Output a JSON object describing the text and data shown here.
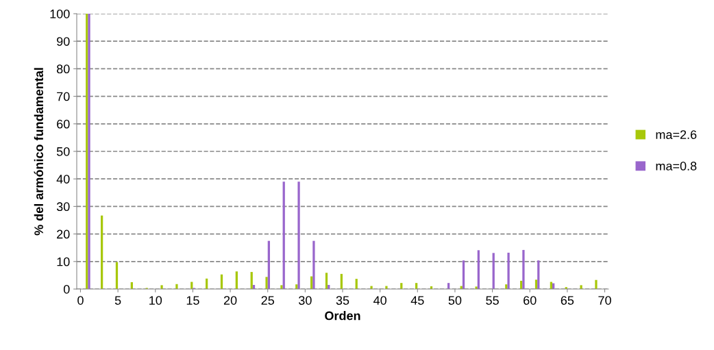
{
  "chart_data": {
    "type": "bar",
    "xlabel": "Orden",
    "ylabel": "% del armónico fundamental",
    "x": [
      1,
      3,
      5,
      7,
      9,
      11,
      13,
      15,
      17,
      19,
      21,
      23,
      25,
      27,
      29,
      31,
      33,
      35,
      37,
      39,
      41,
      43,
      45,
      47,
      49,
      51,
      53,
      55,
      57,
      59,
      61,
      63,
      65,
      67,
      69
    ],
    "series": [
      {
        "name": "ma=2.6",
        "color": "#a8c80a",
        "values": [
          100,
          26.7,
          9.8,
          2.5,
          0.4,
          1.4,
          1.8,
          2.6,
          3.8,
          5.3,
          6.4,
          6.2,
          4.4,
          1.4,
          1.7,
          4.6,
          5.9,
          5.5,
          3.7,
          1.1,
          1.1,
          2.2,
          2.2,
          1.0,
          0,
          1.1,
          0.9,
          0,
          1.7,
          3.0,
          3.4,
          2.6,
          0.7,
          1.4,
          3.3
        ]
      },
      {
        "name": "ma=0.8",
        "color": "#9966cc",
        "values": [
          100,
          0,
          0,
          0,
          0,
          0,
          0,
          0.4,
          0,
          0,
          0,
          1.5,
          17.5,
          39,
          39,
          17.5,
          1.5,
          0,
          0,
          0,
          0,
          0,
          0,
          0,
          2.2,
          10.4,
          14.1,
          13.1,
          13.2,
          14.2,
          10.4,
          2.1,
          0,
          0,
          0
        ]
      }
    ],
    "xlim": [
      -0.5,
      70.5
    ],
    "xticks": [
      0,
      5,
      10,
      15,
      20,
      25,
      30,
      35,
      40,
      45,
      50,
      55,
      60,
      65,
      70
    ],
    "ylim": [
      0,
      100
    ],
    "yticks": [
      0,
      10,
      20,
      30,
      40,
      50,
      60,
      70,
      80,
      90,
      100
    ],
    "grid": "y",
    "line_style": "dashed",
    "legend": "right"
  }
}
